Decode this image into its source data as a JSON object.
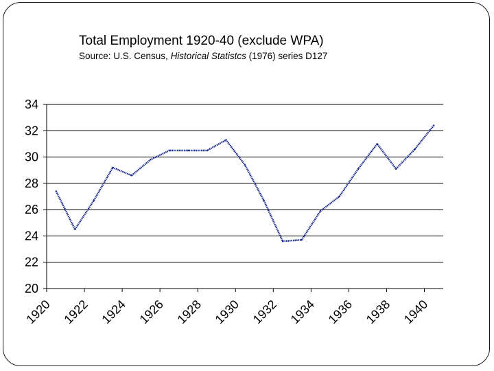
{
  "chart_data": {
    "type": "line",
    "title": "Total Employment 1920-40 (exclude WPA)",
    "subtitle": {
      "prefix": "Source: U.S. Census, ",
      "italic": "Historical Statistcs",
      "suffix": " (1976) series D127"
    },
    "xlabel": "",
    "ylabel": "",
    "xlim": [
      1920,
      1941
    ],
    "ylim": [
      20,
      34
    ],
    "y_ticks": [
      "20",
      "22",
      "24",
      "26",
      "28",
      "30",
      "32",
      "34"
    ],
    "x_ticks": [
      "1920",
      "1922",
      "1924",
      "1926",
      "1928",
      "1930",
      "1932",
      "1934",
      "1936",
      "1938",
      "1940"
    ],
    "grid": true,
    "line_color": "#1f2f8f",
    "series": [
      {
        "name": "Total Employment",
        "x": [
          1920.5,
          1921.5,
          1922.5,
          1923.5,
          1924.5,
          1925.5,
          1926.5,
          1927.5,
          1928.5,
          1929.5,
          1930.5,
          1931.5,
          1932.5,
          1933.5,
          1934.5,
          1935.5,
          1936.5,
          1937.5,
          1938.5,
          1939.5,
          1940.5
        ],
        "values": [
          27.4,
          24.5,
          26.7,
          29.2,
          28.6,
          29.8,
          30.5,
          30.5,
          30.5,
          31.3,
          29.4,
          26.7,
          23.6,
          23.7,
          25.9,
          27.0,
          29.1,
          31.0,
          29.1,
          30.6,
          32.4
        ]
      }
    ]
  }
}
